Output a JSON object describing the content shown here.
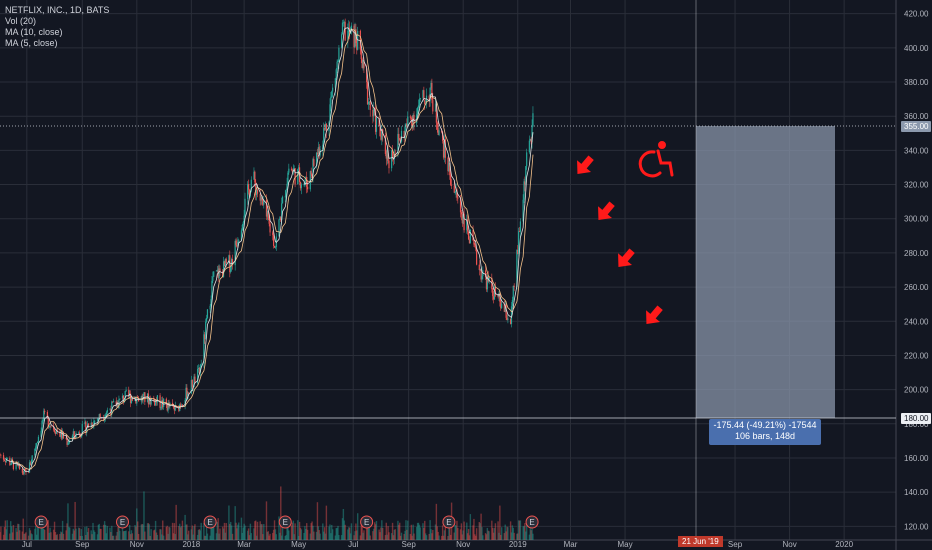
{
  "legend": {
    "symbol": "NETFLIX, INC., 1D, BATS",
    "vol": "Vol (20)",
    "ma10": "MA (10, close)",
    "ma5": "MA (5, close)"
  },
  "price_axis": {
    "ticks": [
      "420.00",
      "400.00",
      "380.00",
      "360.00",
      "340.00",
      "320.00",
      "300.00",
      "280.00",
      "260.00",
      "240.00",
      "220.00",
      "200.00",
      "180.00",
      "160.00",
      "140.00",
      "120.00"
    ],
    "current_price_label": "355.00",
    "target_price_label": "180.00"
  },
  "time_axis": {
    "ticks": [
      "Jul",
      "Sep",
      "Nov",
      "2018",
      "Mar",
      "May",
      "Jul",
      "Sep",
      "Nov",
      "2019",
      "Mar",
      "May",
      "Sep",
      "Nov",
      "2020"
    ],
    "crosshair_label": "21 Jun '19"
  },
  "measure": {
    "line1": "-175.44 (-49.21%) -17544",
    "line2": "106 bars, 148d"
  },
  "earnings_marker": "E",
  "colors": {
    "background": "#131722",
    "up": "#26a69a",
    "down": "#ef5350",
    "ma10": "#f5c28a",
    "ma5": "#e0e0e0",
    "annotation": "#ff1a1a",
    "measure_fill": "#8c99ad"
  },
  "chart_data": {
    "type": "candlestick",
    "y_range": [
      112,
      428
    ],
    "time_range": [
      "2017-06-01",
      "2020-02-28"
    ],
    "closes": [
      {
        "date": "2017-06-01",
        "value": 162
      },
      {
        "date": "2017-07-01",
        "value": 150
      },
      {
        "date": "2017-07-20",
        "value": 184
      },
      {
        "date": "2017-08-15",
        "value": 170
      },
      {
        "date": "2017-09-15",
        "value": 182
      },
      {
        "date": "2017-10-20",
        "value": 196
      },
      {
        "date": "2017-11-20",
        "value": 194
      },
      {
        "date": "2017-12-15",
        "value": 188
      },
      {
        "date": "2018-01-10",
        "value": 210
      },
      {
        "date": "2018-01-25",
        "value": 265
      },
      {
        "date": "2018-02-15",
        "value": 275
      },
      {
        "date": "2018-03-10",
        "value": 325
      },
      {
        "date": "2018-04-05",
        "value": 285
      },
      {
        "date": "2018-04-20",
        "value": 330
      },
      {
        "date": "2018-05-10",
        "value": 320
      },
      {
        "date": "2018-06-01",
        "value": 355
      },
      {
        "date": "2018-06-20",
        "value": 410
      },
      {
        "date": "2018-07-05",
        "value": 405
      },
      {
        "date": "2018-07-20",
        "value": 365
      },
      {
        "date": "2018-08-10",
        "value": 335
      },
      {
        "date": "2018-09-05",
        "value": 360
      },
      {
        "date": "2018-09-25",
        "value": 375
      },
      {
        "date": "2018-10-20",
        "value": 320
      },
      {
        "date": "2018-11-20",
        "value": 270
      },
      {
        "date": "2018-12-24",
        "value": 240
      },
      {
        "date": "2019-01-10",
        "value": 330
      },
      {
        "date": "2019-01-18",
        "value": 355
      }
    ]
  }
}
